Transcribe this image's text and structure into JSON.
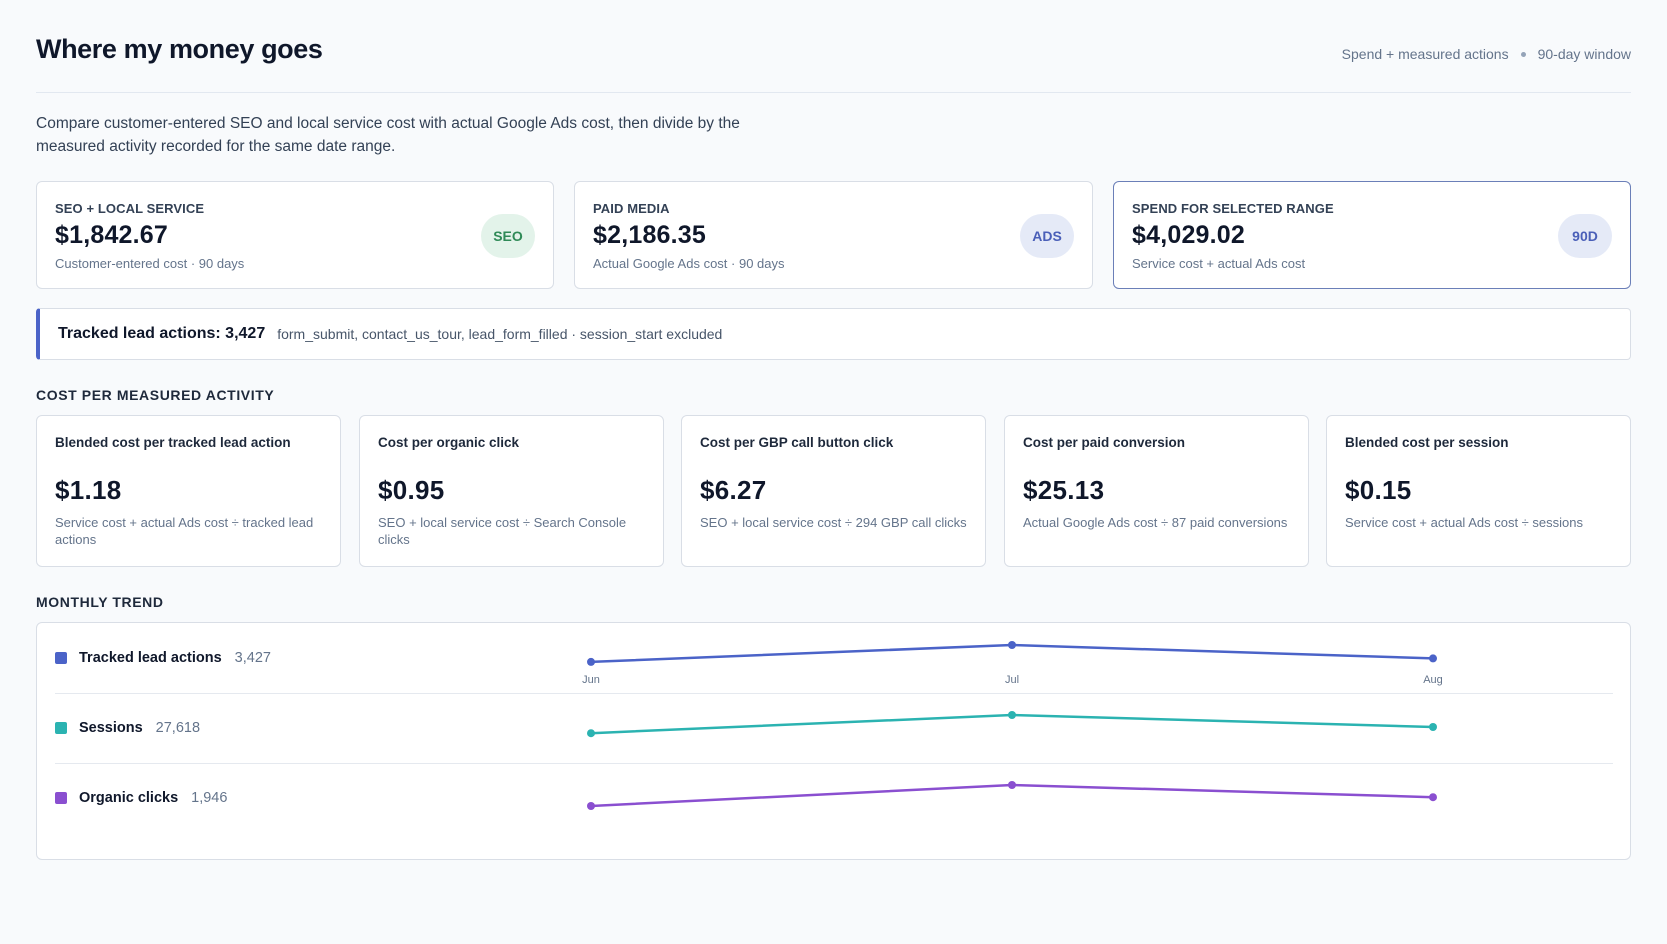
{
  "header": {
    "title": "Where my money goes",
    "meta_left": "Spend + measured actions",
    "meta_right": "90-day window"
  },
  "description": "Compare customer-entered SEO and local service cost with actual Google Ads cost, then divide by the measured activity recorded for the same date range.",
  "spend_cards": [
    {
      "label": "SEO + LOCAL SERVICE",
      "value": "$1,842.67",
      "sub": "Customer-entered cost · 90 days",
      "badge": "SEO"
    },
    {
      "label": "PAID MEDIA",
      "value": "$2,186.35",
      "sub": "Actual Google Ads cost · 90 days",
      "badge": "ADS"
    },
    {
      "label": "SPEND FOR SELECTED RANGE",
      "value": "$4,029.02",
      "sub": "Service cost + actual Ads cost",
      "badge": "90D"
    }
  ],
  "tracked": {
    "title": "Tracked lead actions: 3,427",
    "note": "form_submit, contact_us_tour, lead_form_filled · session_start excluded"
  },
  "cost_section": {
    "title": "COST PER MEASURED ACTIVITY",
    "cards": [
      {
        "label": "Blended cost per tracked lead action",
        "value": "$1.18",
        "sub": "Service cost + actual Ads cost ÷ tracked lead actions"
      },
      {
        "label": "Cost per organic click",
        "value": "$0.95",
        "sub": "SEO + local service cost ÷ Search Console clicks"
      },
      {
        "label": "Cost per GBP call button click",
        "value": "$6.27",
        "sub": "SEO + local service cost ÷ 294 GBP call clicks"
      },
      {
        "label": "Cost per paid conversion",
        "value": "$25.13",
        "sub": "Actual Google Ads cost ÷ 87 paid conversions"
      },
      {
        "label": "Blended cost per session",
        "value": "$0.15",
        "sub": "Service cost + actual Ads cost ÷ sessions"
      }
    ]
  },
  "trend": {
    "title": "MONTHLY TREND",
    "months": [
      "Jun",
      "Jul",
      "Aug"
    ],
    "rows": [
      {
        "name": "Tracked lead actions",
        "count": "3,427",
        "color": "#4b63c8"
      },
      {
        "name": "Sessions",
        "count": "27,618",
        "color": "#2bb3b1"
      },
      {
        "name": "Organic clicks",
        "count": "1,946",
        "color": "#8a4fd0"
      }
    ]
  },
  "chart_data": {
    "type": "line",
    "x": [
      "Jun",
      "Jul",
      "Aug"
    ],
    "series": [
      {
        "name": "Tracked lead actions",
        "values": [
          1090,
          1220,
          1117
        ]
      },
      {
        "name": "Sessions",
        "values": [
          8700,
          9830,
          9088
        ]
      },
      {
        "name": "Organic clicks",
        "values": [
          600,
          700,
          646
        ]
      }
    ]
  }
}
